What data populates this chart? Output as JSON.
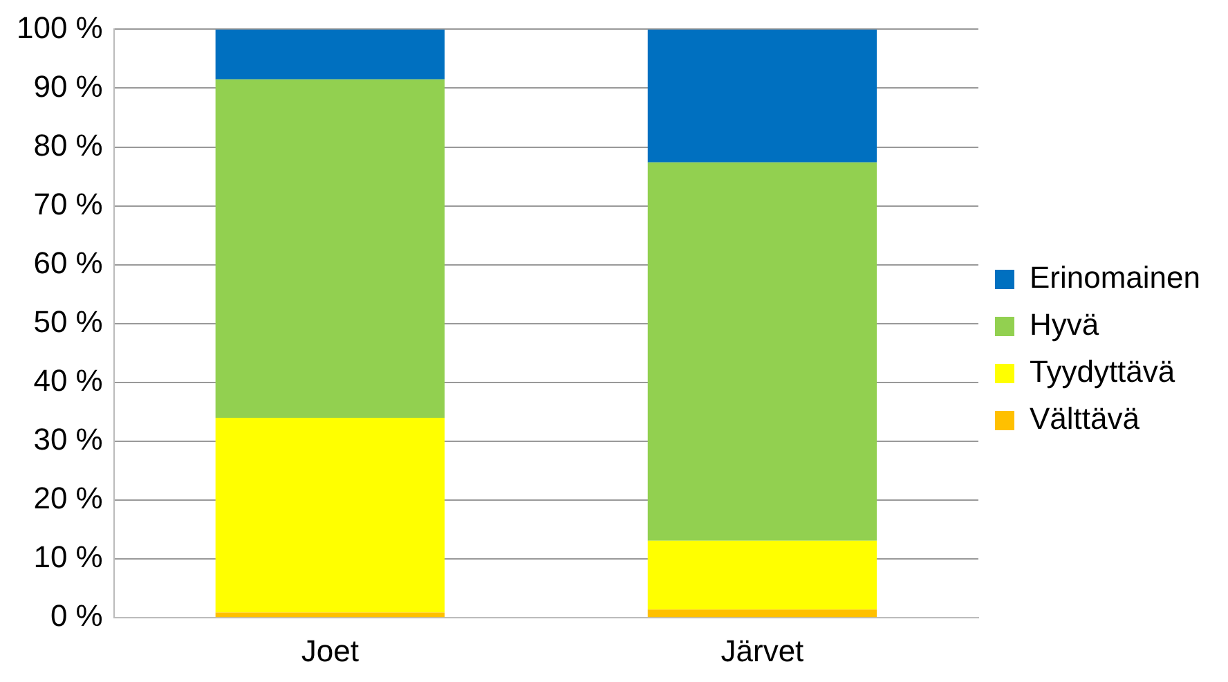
{
  "chart_data": {
    "type": "bar",
    "stacked": true,
    "categories": [
      "Joet",
      "Järvet"
    ],
    "series": [
      {
        "name": "Välttävä",
        "color": "#ffc000",
        "values": [
          0.9,
          1.4
        ]
      },
      {
        "name": "Tyydyttävä",
        "color": "#ffff00",
        "values": [
          33.1,
          11.7
        ]
      },
      {
        "name": "Hyvä",
        "color": "#92d050",
        "values": [
          57.5,
          64.3
        ]
      },
      {
        "name": "Erinomainen",
        "color": "#0070c0",
        "values": [
          8.5,
          22.6
        ]
      }
    ],
    "ylim": [
      0,
      100
    ],
    "yticks": [
      {
        "value": 0,
        "label": "0 %"
      },
      {
        "value": 10,
        "label": "10 %"
      },
      {
        "value": 20,
        "label": "20 %"
      },
      {
        "value": 30,
        "label": "30 %"
      },
      {
        "value": 40,
        "label": "40 %"
      },
      {
        "value": 50,
        "label": "50 %"
      },
      {
        "value": 60,
        "label": "60 %"
      },
      {
        "value": 70,
        "label": "70 %"
      },
      {
        "value": 80,
        "label": "80 %"
      },
      {
        "value": 90,
        "label": "90 %"
      },
      {
        "value": 100,
        "label": "100 %"
      }
    ],
    "grid": "y",
    "legend": "right"
  }
}
